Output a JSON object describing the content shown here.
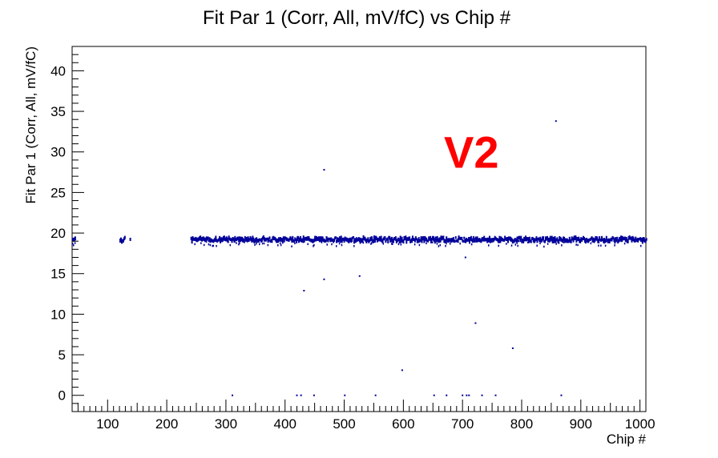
{
  "chart_data": {
    "type": "scatter",
    "title": "Fit Par 1 (Corr, All, mV/fC) vs Chip #",
    "xlabel": "Chip #",
    "ylabel": "Fit Par 1 (Corr, All, mV/fC)",
    "xlim": [
      40,
      1010
    ],
    "ylim": [
      -2,
      43
    ],
    "xticks": [
      100,
      200,
      300,
      400,
      500,
      600,
      700,
      800,
      900,
      1000
    ],
    "yticks": [
      0,
      5,
      10,
      15,
      20,
      25,
      30,
      35,
      40
    ],
    "grid": false,
    "legend": "none",
    "marker_color": "#000099",
    "annotation": {
      "text": "V2",
      "color": "#ff0000",
      "x": 715,
      "y": 30
    },
    "band": {
      "description_values": {
        "center": 19.2,
        "spread": 0.25
      },
      "segments": [
        {
          "x_start": 40,
          "x_end": 45
        },
        {
          "x_start": 120,
          "x_end": 128
        },
        {
          "x_start": 137,
          "x_end": 138
        },
        {
          "x_start": 240,
          "x_end": 1010
        }
      ]
    },
    "outliers": [
      {
        "x": 858,
        "y": 33.8
      },
      {
        "x": 466,
        "y": 27.8
      },
      {
        "x": 466,
        "y": 14.3
      },
      {
        "x": 432,
        "y": 12.9
      },
      {
        "x": 526,
        "y": 14.7
      },
      {
        "x": 705,
        "y": 17.0
      },
      {
        "x": 722,
        "y": 8.9
      },
      {
        "x": 785,
        "y": 5.8
      },
      {
        "x": 598,
        "y": 3.1
      },
      {
        "x": 311,
        "y": 0
      },
      {
        "x": 420,
        "y": 0
      },
      {
        "x": 427,
        "y": 0
      },
      {
        "x": 449,
        "y": 0
      },
      {
        "x": 501,
        "y": 0
      },
      {
        "x": 553,
        "y": 0
      },
      {
        "x": 652,
        "y": 0
      },
      {
        "x": 673,
        "y": 0
      },
      {
        "x": 700,
        "y": 0
      },
      {
        "x": 707,
        "y": 0
      },
      {
        "x": 711,
        "y": 0
      },
      {
        "x": 733,
        "y": 0
      },
      {
        "x": 756,
        "y": 0
      },
      {
        "x": 867,
        "y": 0
      }
    ]
  }
}
